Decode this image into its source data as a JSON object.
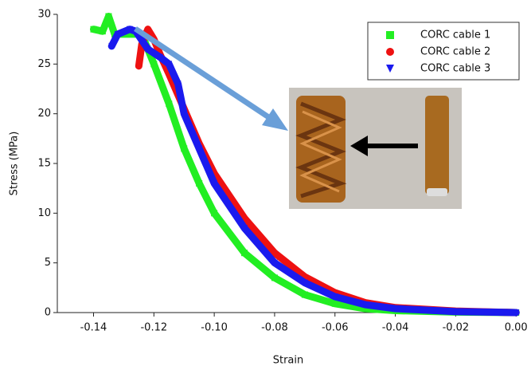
{
  "chart_data": {
    "type": "scatter",
    "x_label": "Strain",
    "y_label": "Stress (MPa)",
    "xlim": [
      -0.152,
      0.001
    ],
    "ylim": [
      0,
      30
    ],
    "xticks": [
      -0.14,
      -0.12,
      {
        "value": -0.1,
        "label": "-0.10"
      },
      -0.08,
      -0.06,
      -0.04,
      -0.02,
      {
        "value": 0,
        "label": "0.00"
      }
    ],
    "yticks": [
      0,
      5,
      10,
      15,
      20,
      25,
      30
    ],
    "legend": "upper right",
    "series": [
      {
        "name": "CORC cable 1",
        "color": "#22ee22",
        "marker": "square",
        "x": [
          -0.14,
          -0.137,
          -0.135,
          -0.133,
          -0.128,
          -0.124,
          -0.12,
          -0.115,
          -0.11,
          -0.105,
          -0.1,
          -0.09,
          -0.08,
          -0.07,
          -0.06,
          -0.05,
          -0.04,
          -0.02,
          0
        ],
        "values": [
          28.5,
          28.3,
          29.8,
          28,
          28,
          28,
          25,
          21,
          16.5,
          13,
          10,
          6,
          3.5,
          1.8,
          0.9,
          0.4,
          0.2,
          0.05,
          0
        ]
      },
      {
        "name": "CORC cable 2",
        "color": "#ee1111",
        "marker": "circle",
        "x": [
          -0.125,
          -0.124,
          -0.122,
          -0.12,
          -0.118,
          -0.115,
          -0.11,
          -0.105,
          -0.1,
          -0.09,
          -0.08,
          -0.07,
          -0.06,
          -0.05,
          -0.04,
          -0.02,
          0
        ],
        "values": [
          24.8,
          27,
          28.5,
          27.5,
          26,
          24,
          20.5,
          17,
          14,
          9.5,
          6,
          3.6,
          2,
          1,
          0.5,
          0.15,
          0
        ]
      },
      {
        "name": "CORC cable 3",
        "color": "#1a1aee",
        "marker": "triangle",
        "x": [
          -0.134,
          -0.132,
          -0.128,
          -0.126,
          -0.122,
          -0.118,
          -0.115,
          -0.112,
          -0.11,
          -0.105,
          -0.1,
          -0.09,
          -0.08,
          -0.07,
          -0.06,
          -0.05,
          -0.04,
          -0.02,
          0
        ],
        "values": [
          26.8,
          28,
          28.5,
          28.3,
          26.5,
          25.7,
          25,
          23,
          20,
          16.5,
          13,
          8.5,
          5,
          3,
          1.6,
          0.8,
          0.4,
          0.1,
          0
        ]
      }
    ]
  }
}
